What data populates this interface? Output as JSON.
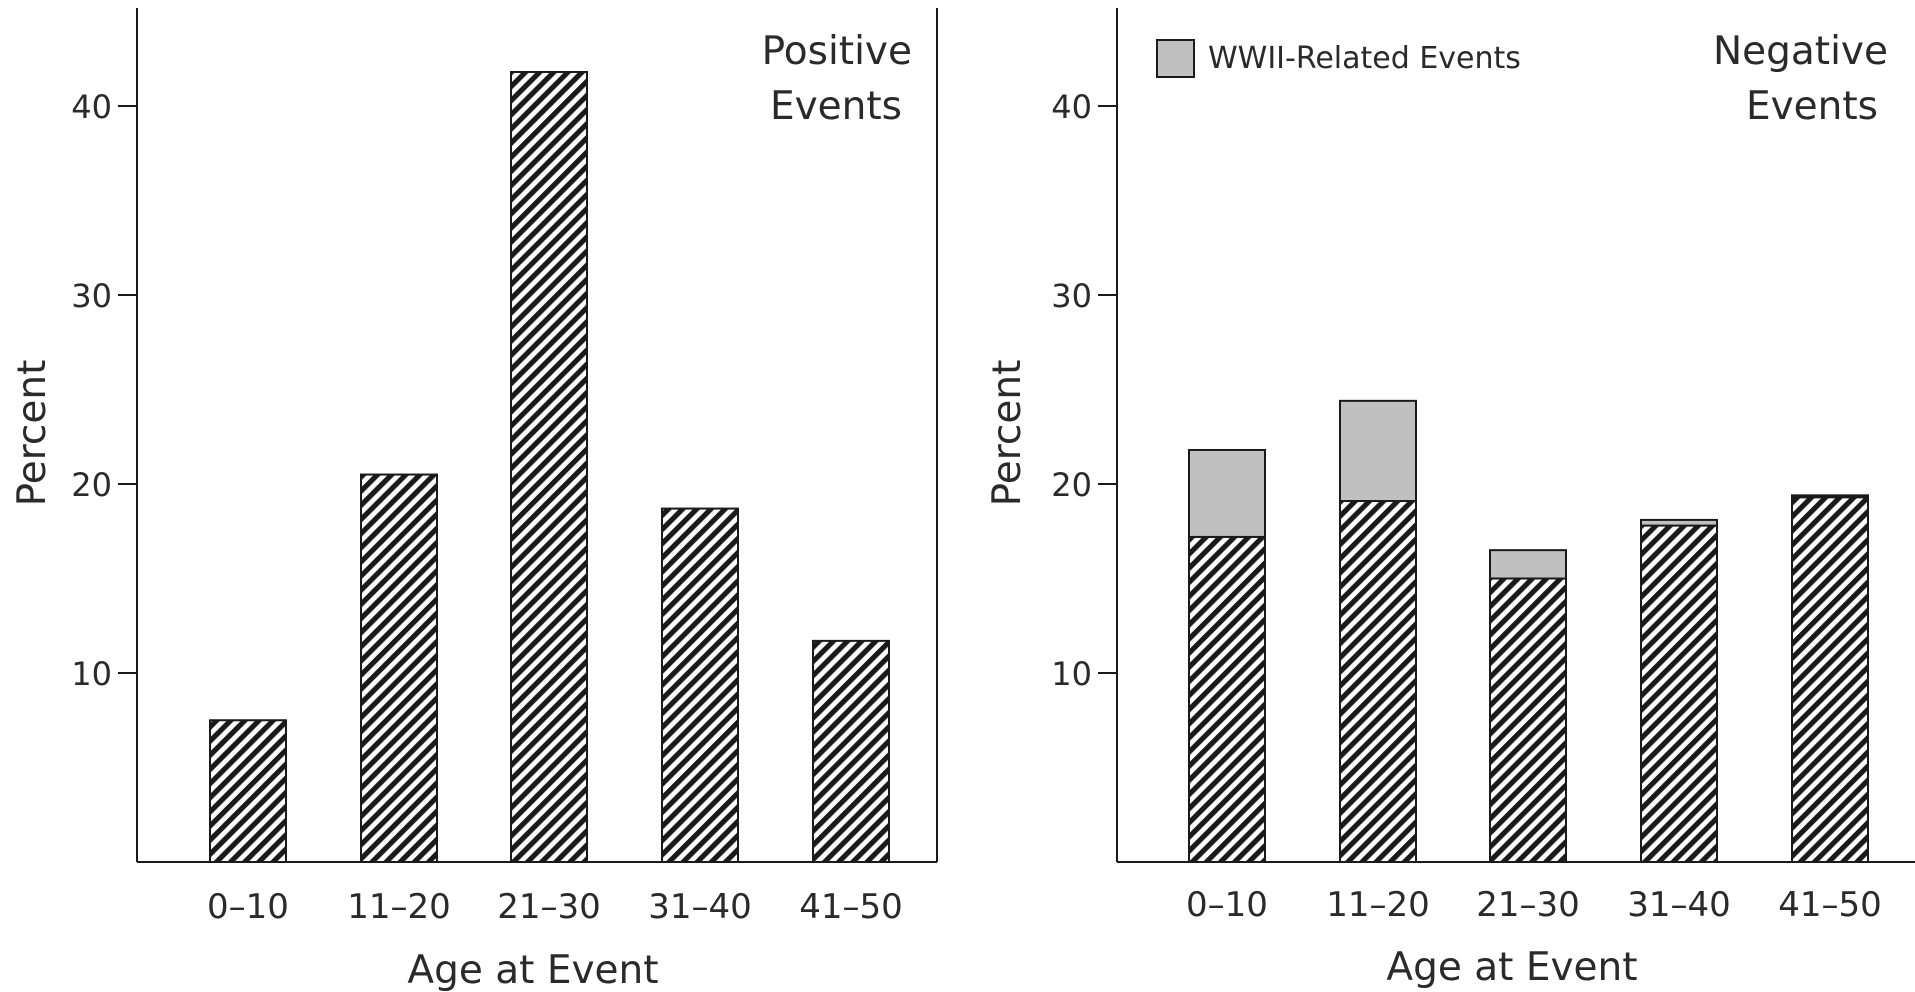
{
  "colors": {
    "bar_stroke": "#1a1a1a",
    "hatch": "#1a1a1a",
    "wwii_fill": "#c0c0c0",
    "axis": "#1a1a1a",
    "text": "#2a2a2a"
  },
  "chart_data": [
    {
      "type": "bar",
      "title": "Positive\nEvents",
      "title_lines": [
        "Positive",
        "Events"
      ],
      "xlabel": "Age at Event",
      "ylabel": "Percent",
      "categories": [
        "0–10",
        "11–20",
        "21–30",
        "31–40",
        "41–50"
      ],
      "ylim": [
        0,
        45
      ],
      "yticks": [
        10,
        20,
        30,
        40
      ],
      "grid": false,
      "series": [
        {
          "name": "",
          "pattern": "hatch",
          "values": [
            7.5,
            20.5,
            41.8,
            18.7,
            11.7
          ]
        }
      ]
    },
    {
      "type": "bar",
      "stacked": true,
      "title": "Negative\nEvents",
      "title_lines": [
        "Negative",
        "Events"
      ],
      "xlabel": "Age at Event",
      "ylabel": "Percent",
      "categories": [
        "0–10",
        "11–20",
        "21–30",
        "31–40",
        "41–50"
      ],
      "ylim": [
        0,
        45
      ],
      "yticks": [
        10,
        20,
        30,
        40
      ],
      "grid": false,
      "legend": {
        "placement": "top-left",
        "entries": [
          "WWII-Related Events"
        ]
      },
      "series": [
        {
          "name": "",
          "pattern": "hatch",
          "values": [
            17.2,
            19.1,
            15.0,
            17.8,
            19.3
          ]
        },
        {
          "name": "WWII-Related Events",
          "pattern": "gray",
          "values": [
            4.6,
            5.3,
            1.5,
            0.3,
            0.1
          ]
        }
      ]
    }
  ]
}
